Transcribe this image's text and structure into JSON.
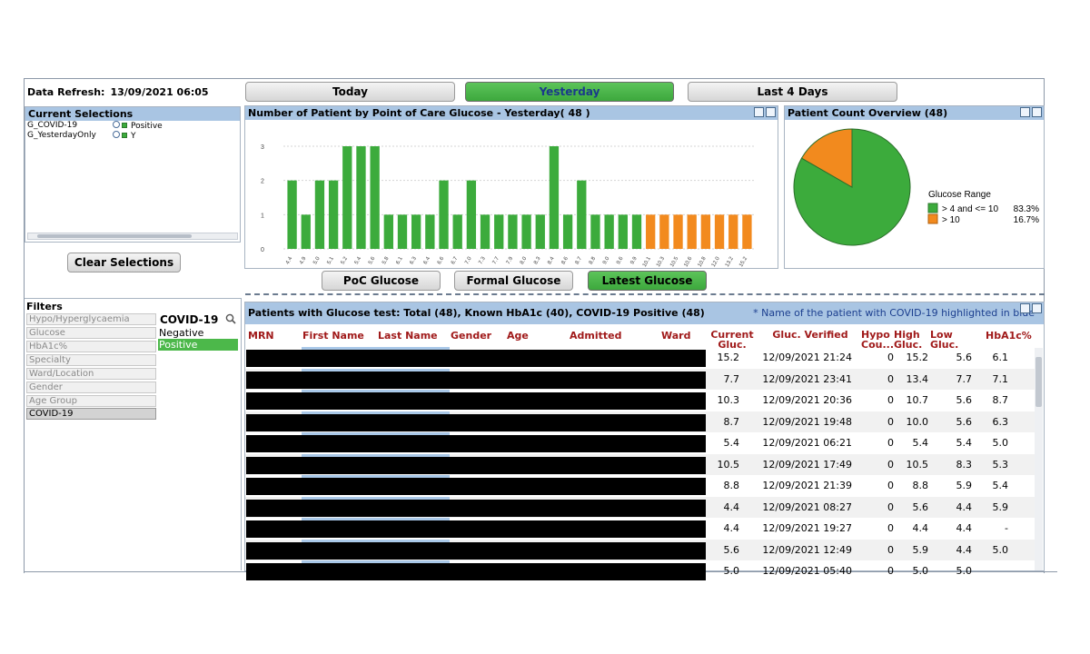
{
  "header": {
    "refresh_label": "Data Refresh:",
    "refresh_value": "13/09/2021 06:05"
  },
  "top_buttons": [
    {
      "label": "Today",
      "active": false
    },
    {
      "label": "Yesterday",
      "active": true
    },
    {
      "label": "Last 4 Days",
      "active": false
    }
  ],
  "current_selections": {
    "title": "Current Selections",
    "items": [
      {
        "field": "G_COVID-19",
        "value": "Positive"
      },
      {
        "field": "G_YesterdayOnly",
        "value": "Y"
      }
    ],
    "clear_label": "Clear Selections"
  },
  "filters": {
    "title": "Filters",
    "items": [
      "Hypo/Hyperglycaemia",
      "Glucose",
      "HbA1c%",
      "Specialty",
      "Ward/Location",
      "Gender",
      "Age Group",
      "COVID-19"
    ],
    "selected": "COVID-19",
    "covid_title": "COVID-19",
    "covid_options": [
      {
        "label": "Negative",
        "selected": false
      },
      {
        "label": "Positive",
        "selected": true
      }
    ]
  },
  "chart_data": {
    "type": "bar",
    "title": "Number of Patient by Point of Care Glucose - Yesterday( 48 )",
    "categories": [
      "4.4",
      "4.9",
      "5.0",
      "5.1",
      "5.2",
      "5.4",
      "5.6",
      "5.8",
      "6.1",
      "6.3",
      "6.4",
      "6.6",
      "6.7",
      "7.0",
      "7.3",
      "7.7",
      "7.9",
      "8.0",
      "8.3",
      "8.4",
      "8.6",
      "8.7",
      "8.8",
      "9.0",
      "9.6",
      "9.9",
      "10.1",
      "10.3",
      "10.5",
      "10.6",
      "10.8",
      "12.0",
      "13.2",
      "15.2"
    ],
    "values": [
      2,
      1,
      2,
      2,
      3,
      3,
      3,
      1,
      1,
      1,
      1,
      2,
      1,
      2,
      1,
      1,
      1,
      1,
      1,
      3,
      1,
      2,
      1,
      1,
      1,
      1,
      1,
      1,
      1,
      1,
      1,
      1,
      1,
      1
    ],
    "colors_by_category": [
      "green",
      "green",
      "green",
      "green",
      "green",
      "green",
      "green",
      "green",
      "green",
      "green",
      "green",
      "green",
      "green",
      "green",
      "green",
      "green",
      "green",
      "green",
      "green",
      "green",
      "green",
      "green",
      "green",
      "green",
      "green",
      "green",
      "orange",
      "orange",
      "orange",
      "orange",
      "orange",
      "orange",
      "orange",
      "orange"
    ],
    "ylim": [
      0,
      3
    ],
    "yticks": [
      0,
      1,
      2,
      3
    ],
    "grid": true,
    "xlabel": "",
    "ylabel": ""
  },
  "pie": {
    "title": "Patient Count Overview (48)",
    "legend_title": "Glucose Range",
    "slices": [
      {
        "label": "> 4 and <= 10",
        "percent_label": "83.3%",
        "value": 83.3,
        "color": "#3cab3c"
      },
      {
        "label": "> 10",
        "percent_label": "16.7%",
        "value": 16.7,
        "color": "#f28a1e"
      }
    ]
  },
  "tabs": [
    {
      "label": "PoC Glucose",
      "active": false
    },
    {
      "label": "Formal Glucose",
      "active": false
    },
    {
      "label": "Latest Glucose",
      "active": true
    }
  ],
  "table": {
    "title": "Patients with Glucose test: Total (48), Known HbA1c (40), COVID-19 Positive (48)",
    "note": "* Name of the patient with COVID-19 highlighted in blue",
    "columns": [
      "MRN",
      "First Name",
      "Last Name",
      "Gender",
      "Age",
      "Admitted",
      "Ward",
      "Current Gluc.",
      "Gluc. Verified",
      "Hypo Cou...",
      "High Gluc.",
      "Low Gluc.",
      "HbA1c%"
    ],
    "rows": [
      {
        "current": "15.2",
        "verified": "12/09/2021 21:24",
        "hypo": "0",
        "high": "15.2",
        "low": "5.6",
        "hba1c": "6.1"
      },
      {
        "current": "7.7",
        "verified": "12/09/2021 23:41",
        "hypo": "0",
        "high": "13.4",
        "low": "7.7",
        "hba1c": "7.1"
      },
      {
        "current": "10.3",
        "verified": "12/09/2021 20:36",
        "hypo": "0",
        "high": "10.7",
        "low": "5.6",
        "hba1c": "8.7"
      },
      {
        "current": "8.7",
        "verified": "12/09/2021 19:48",
        "hypo": "0",
        "high": "10.0",
        "low": "5.6",
        "hba1c": "6.3"
      },
      {
        "current": "5.4",
        "verified": "12/09/2021 06:21",
        "hypo": "0",
        "high": "5.4",
        "low": "5.4",
        "hba1c": "5.0"
      },
      {
        "current": "10.5",
        "verified": "12/09/2021 17:49",
        "hypo": "0",
        "high": "10.5",
        "low": "8.3",
        "hba1c": "5.3"
      },
      {
        "current": "8.8",
        "verified": "12/09/2021 21:39",
        "hypo": "0",
        "high": "8.8",
        "low": "5.9",
        "hba1c": "5.4"
      },
      {
        "current": "4.4",
        "verified": "12/09/2021 08:27",
        "hypo": "0",
        "high": "5.6",
        "low": "4.4",
        "hba1c": "5.9"
      },
      {
        "current": "4.4",
        "verified": "12/09/2021 19:27",
        "hypo": "0",
        "high": "4.4",
        "low": "4.4",
        "hba1c": "-"
      },
      {
        "current": "5.6",
        "verified": "12/09/2021 12:49",
        "hypo": "0",
        "high": "5.9",
        "low": "4.4",
        "hba1c": "5.0"
      },
      {
        "current": "5.0",
        "verified": "12/09/2021 05:40",
        "hypo": "0",
        "high": "5.0",
        "low": "5.0",
        "hba1c": ""
      }
    ]
  },
  "colors": {
    "green": "#3cab3c",
    "orange": "#f28a1e",
    "header_blue": "#a9c5e3",
    "column_red": "#a01a1a"
  }
}
